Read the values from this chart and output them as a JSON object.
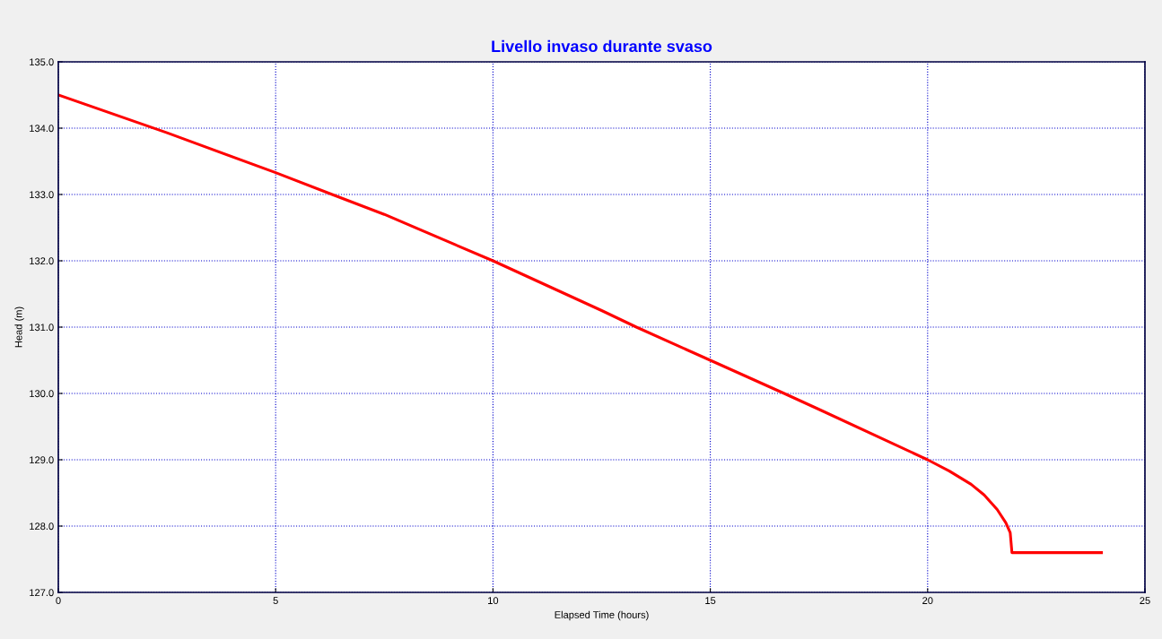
{
  "chart_data": {
    "type": "line",
    "title": "Livello invaso durante svaso",
    "xlabel": "Elapsed Time (hours)",
    "ylabel": "Head (m)",
    "x": [
      0,
      2.5,
      5,
      6.3,
      7.5,
      10,
      12.5,
      13.3,
      15,
      16.7,
      17.5,
      20,
      20.5,
      21,
      21.3,
      21.6,
      21.8,
      21.9,
      21.94,
      24
    ],
    "series": [
      {
        "color": "#ff0000",
        "values": [
          134.5,
          133.93,
          133.33,
          133.0,
          132.7,
          132.0,
          131.25,
          131.0,
          130.5,
          130.0,
          129.76,
          129.0,
          128.83,
          128.63,
          128.47,
          128.25,
          128.05,
          127.9,
          127.6,
          127.6
        ]
      }
    ],
    "xlim": [
      0,
      25
    ],
    "xticks": [
      0,
      5,
      10,
      15,
      20,
      25
    ],
    "ylim": [
      127,
      135
    ],
    "yticks": [
      {
        "value": 127,
        "label": "127.0"
      },
      {
        "value": 128,
        "label": "128.0"
      },
      {
        "value": 129,
        "label": "129.0"
      },
      {
        "value": 130,
        "label": "130.0"
      },
      {
        "value": 131,
        "label": "131.0"
      },
      {
        "value": 132,
        "label": "132.0"
      },
      {
        "value": 133,
        "label": "133.0"
      },
      {
        "value": 134,
        "label": "134.0"
      },
      {
        "value": 135,
        "label": "135.0"
      }
    ],
    "grid": true,
    "line_style": "solid"
  }
}
